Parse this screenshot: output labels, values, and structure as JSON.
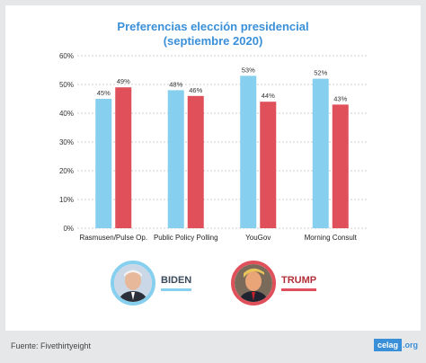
{
  "chart_data": {
    "type": "bar",
    "title": "Preferencias elección presidencial",
    "subtitle": "(septiembre 2020)",
    "categories": [
      "Rasmusen/Pulse Op.",
      "Public Policy Polling",
      "YouGov",
      "Morning Consult"
    ],
    "series": [
      {
        "name": "BIDEN",
        "values": [
          45,
          48,
          53,
          52
        ],
        "labels": [
          "45%",
          "48%",
          "53%",
          "52%"
        ],
        "color": "#87cfee"
      },
      {
        "name": "TRUMP",
        "values": [
          49,
          46,
          44,
          43
        ],
        "labels": [
          "49%",
          "46%",
          "44%",
          "43%"
        ],
        "color": "#e0505a"
      }
    ],
    "ylim": [
      0,
      60
    ],
    "yticks": [
      0,
      10,
      20,
      30,
      40,
      50,
      60
    ],
    "ytick_labels": [
      "0%",
      "10%",
      "20%",
      "30%",
      "40%",
      "50%",
      "60%"
    ],
    "grid": true,
    "legend": "bottom"
  },
  "legend": {
    "biden": {
      "label": "BIDEN",
      "color": "#87cfee",
      "icon": "biden-portrait-icon"
    },
    "trump": {
      "label": "TRUMP",
      "color": "#e0505a",
      "icon": "trump-portrait-icon"
    }
  },
  "footer": {
    "source": "Fuente: Fivethirtyeight",
    "logo_main": "celag",
    "logo_ext": ".org"
  }
}
